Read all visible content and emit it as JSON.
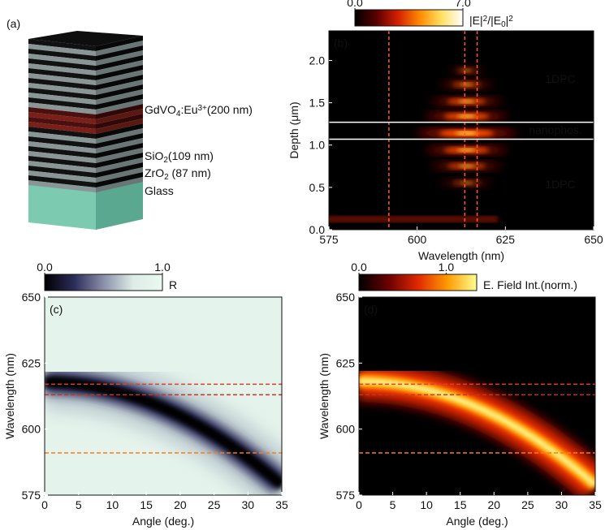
{
  "panel_a": {
    "label": "(a)",
    "layers": [
      {
        "parts": [
          {
            "text": "GdVO"
          },
          {
            "text": "4",
            "pos": "sub"
          },
          {
            "text": ":Eu"
          },
          {
            "text": "3+",
            "pos": "sup"
          },
          {
            "text": "(200 nm)"
          }
        ],
        "color": "#5a1a10"
      },
      {
        "parts": [
          {
            "text": "SiO"
          },
          {
            "text": "2",
            "pos": "sub"
          },
          {
            "text": "(109 nm)"
          }
        ],
        "color": "#6c7c7c"
      },
      {
        "parts": [
          {
            "text": "ZrO"
          },
          {
            "text": "2",
            "pos": "sub"
          },
          {
            "text": " (87 nm)"
          }
        ],
        "color": "#111111"
      },
      {
        "parts": [
          {
            "text": "Glass"
          }
        ],
        "color": "#4fa386"
      }
    ]
  },
  "panel_b": {
    "label": "(b)",
    "xlabel": "Wavelength (nm)",
    "ylabel": [
      {
        "text": "Depth ("
      },
      {
        "text": "μ"
      },
      {
        "text": "m)"
      }
    ],
    "xlim": [
      575,
      650
    ],
    "xticks": [
      575,
      600,
      625,
      650
    ],
    "ylim": [
      0,
      2.35
    ],
    "yticks": [
      {
        "value": 0,
        "label": "0.0"
      },
      0.5,
      {
        "value": 1,
        "label": "1.0"
      },
      1.5,
      {
        "value": 2,
        "label": "2.0"
      }
    ],
    "colorbar": {
      "lim": [
        0,
        7
      ],
      "ticks": [
        {
          "value": 0,
          "label": "0.0"
        },
        {
          "value": 7,
          "label": "7.0"
        }
      ],
      "title": [
        {
          "text": "|E|"
        },
        {
          "text": "2",
          "pos": "sup"
        },
        {
          "text": "/|E"
        },
        {
          "text": "0",
          "pos": "sub"
        },
        {
          "text": "|"
        },
        {
          "text": "2",
          "pos": "sup"
        }
      ],
      "colormap": [
        "#000000",
        "#5a0000",
        "#d42000",
        "#ff8a00",
        "#ffe060",
        "#ffffff"
      ]
    },
    "vlines": [
      {
        "value": 592,
        "color": "#ff5a2a",
        "dash": true
      },
      {
        "value": 613.5,
        "color": "#ff5a2a",
        "dash": true
      },
      {
        "value": 617,
        "color": "#ff5a2a",
        "dash": true
      }
    ],
    "hlines": [
      {
        "value": 1.07,
        "color": "#ffffff",
        "dash": false
      },
      {
        "value": 1.27,
        "color": "#ffffff",
        "dash": false
      }
    ],
    "annotations": [
      "1DPC",
      "nanophos.",
      "1DPC"
    ]
  },
  "panel_c": {
    "label": "(c)",
    "xlabel": "Angle (deg.)",
    "ylabel": [
      {
        "text": "Wavelength (nm)"
      }
    ],
    "xlim": [
      0,
      35
    ],
    "xticks": [
      0,
      5,
      10,
      15,
      20,
      25,
      30,
      35
    ],
    "ylim": [
      575,
      650
    ],
    "yticks": [
      575,
      600,
      625,
      650
    ],
    "colorbar": {
      "lim": [
        0,
        1
      ],
      "ticks": [
        {
          "value": 0,
          "label": "0.0"
        },
        {
          "value": 1,
          "label": "1.0"
        }
      ],
      "title": [
        {
          "text": "R"
        }
      ],
      "colormap": [
        "#000000",
        "#2c2c5a",
        "#8a90a8",
        "#dcece6",
        "#eafaf2"
      ]
    },
    "hlines": [
      {
        "value": 617,
        "color": "#e0402a",
        "dash": true
      },
      {
        "value": 613,
        "color": "#c8321e",
        "dash": true
      },
      {
        "value": 591,
        "color": "#ff7a10",
        "dash": true
      }
    ]
  },
  "panel_d": {
    "label": "(d)",
    "xlabel": "Angle (deg.)",
    "ylabel": [
      {
        "text": "Wavelength (nm)"
      }
    ],
    "xlim": [
      0,
      35
    ],
    "xticks": [
      0,
      5,
      10,
      15,
      20,
      25,
      30,
      35
    ],
    "ylim": [
      575,
      650
    ],
    "yticks": [
      575,
      600,
      625,
      650
    ],
    "colorbar": {
      "lim": [
        0,
        1.35
      ],
      "ticks": [
        {
          "value": 0,
          "label": "0.0"
        },
        {
          "value": 1,
          "label": "1.0"
        }
      ],
      "title": [
        {
          "text": "E. Field Int.(norm.)"
        }
      ],
      "colormap": [
        "#000000",
        "#6a0000",
        "#e02800",
        "#ff9a00",
        "#ffff90"
      ]
    },
    "hlines": [
      {
        "value": 617,
        "color": "#e0402a",
        "dash": true
      },
      {
        "value": 613,
        "color": "#c8321e",
        "dash": true
      },
      {
        "value": 591,
        "color": "#ff7a10",
        "dash": true
      }
    ]
  }
}
